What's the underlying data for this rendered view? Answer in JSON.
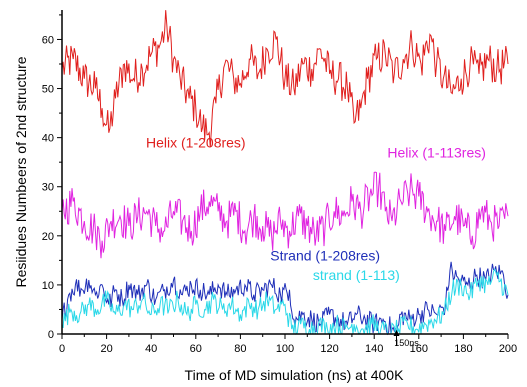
{
  "chart_data": {
    "type": "line",
    "xlabel": "Time of MD simulation (ns) at 400K",
    "ylabel": "Resiidues Numbeers of 2nd structure",
    "xlim": [
      0,
      200
    ],
    "ylim": [
      0,
      66
    ],
    "xticks": [
      0,
      20,
      40,
      60,
      80,
      100,
      120,
      140,
      160,
      180,
      200
    ],
    "yticks": [
      0,
      10,
      20,
      30,
      40,
      50,
      60
    ],
    "x_minor_step": 10,
    "y_minor_step": 5,
    "grid": false,
    "series": [
      {
        "name": "Helix (1-208res)",
        "color": "#e0201e",
        "points": [
          [
            0,
            54
          ],
          [
            5,
            56
          ],
          [
            10,
            52
          ],
          [
            15,
            50
          ],
          [
            18,
            46
          ],
          [
            21,
            41
          ],
          [
            24,
            48
          ],
          [
            28,
            55
          ],
          [
            32,
            52
          ],
          [
            36,
            54
          ],
          [
            40,
            57
          ],
          [
            44,
            59
          ],
          [
            47,
            63
          ],
          [
            50,
            56
          ],
          [
            53,
            52
          ],
          [
            57,
            48
          ],
          [
            60,
            46
          ],
          [
            63,
            42
          ],
          [
            66,
            41
          ],
          [
            69,
            47
          ],
          [
            73,
            55
          ],
          [
            77,
            52
          ],
          [
            80,
            51
          ],
          [
            84,
            56
          ],
          [
            88,
            53
          ],
          [
            92,
            58
          ],
          [
            96,
            60
          ],
          [
            100,
            52
          ],
          [
            104,
            50
          ],
          [
            108,
            55
          ],
          [
            112,
            54
          ],
          [
            116,
            58
          ],
          [
            120,
            53
          ],
          [
            124,
            52
          ],
          [
            128,
            50
          ],
          [
            131,
            43
          ],
          [
            134,
            46
          ],
          [
            137,
            52
          ],
          [
            141,
            56
          ],
          [
            145,
            57
          ],
          [
            149,
            53
          ],
          [
            153,
            56
          ],
          [
            157,
            59
          ],
          [
            161,
            55
          ],
          [
            165,
            61
          ],
          [
            168,
            55
          ],
          [
            171,
            52
          ],
          [
            175,
            49
          ],
          [
            179,
            52
          ],
          [
            183,
            55
          ],
          [
            187,
            53
          ],
          [
            191,
            56
          ],
          [
            195,
            54
          ],
          [
            200,
            55
          ]
        ]
      },
      {
        "name": "Helix (1-113res)",
        "color": "#e024e0",
        "points": [
          [
            0,
            25
          ],
          [
            5,
            27
          ],
          [
            10,
            23
          ],
          [
            15,
            21
          ],
          [
            18,
            19
          ],
          [
            22,
            23
          ],
          [
            26,
            24
          ],
          [
            30,
            22
          ],
          [
            34,
            24
          ],
          [
            38,
            25
          ],
          [
            42,
            22
          ],
          [
            46,
            21
          ],
          [
            50,
            25
          ],
          [
            54,
            23
          ],
          [
            58,
            21
          ],
          [
            62,
            25
          ],
          [
            66,
            27
          ],
          [
            70,
            25
          ],
          [
            74,
            23
          ],
          [
            78,
            25
          ],
          [
            82,
            21
          ],
          [
            86,
            24
          ],
          [
            90,
            22
          ],
          [
            94,
            20
          ],
          [
            98,
            23
          ],
          [
            102,
            21
          ],
          [
            106,
            24
          ],
          [
            110,
            22
          ],
          [
            114,
            20
          ],
          [
            118,
            22
          ],
          [
            122,
            25
          ],
          [
            126,
            24
          ],
          [
            130,
            27
          ],
          [
            134,
            25
          ],
          [
            138,
            28
          ],
          [
            142,
            30
          ],
          [
            145,
            25
          ],
          [
            148,
            23
          ],
          [
            152,
            27
          ],
          [
            156,
            29
          ],
          [
            160,
            28
          ],
          [
            164,
            25
          ],
          [
            168,
            23
          ],
          [
            172,
            21
          ],
          [
            176,
            24
          ],
          [
            180,
            22
          ],
          [
            184,
            20
          ],
          [
            188,
            25
          ],
          [
            192,
            23
          ],
          [
            196,
            22
          ],
          [
            200,
            24
          ]
        ]
      },
      {
        "name": "Strand (1-208res)",
        "color": "#1f2fb8",
        "points": [
          [
            0,
            3
          ],
          [
            3,
            8
          ],
          [
            6,
            10
          ],
          [
            9,
            9
          ],
          [
            12,
            11
          ],
          [
            15,
            8
          ],
          [
            18,
            10
          ],
          [
            21,
            6
          ],
          [
            24,
            9
          ],
          [
            27,
            7
          ],
          [
            30,
            10
          ],
          [
            34,
            8
          ],
          [
            38,
            10
          ],
          [
            42,
            7
          ],
          [
            46,
            9
          ],
          [
            50,
            11
          ],
          [
            54,
            8
          ],
          [
            58,
            10
          ],
          [
            62,
            9
          ],
          [
            66,
            8
          ],
          [
            70,
            10
          ],
          [
            74,
            8
          ],
          [
            78,
            9
          ],
          [
            82,
            10
          ],
          [
            86,
            8
          ],
          [
            90,
            9
          ],
          [
            94,
            10
          ],
          [
            98,
            8
          ],
          [
            102,
            9
          ],
          [
            104,
            3
          ],
          [
            108,
            4
          ],
          [
            112,
            3
          ],
          [
            116,
            2
          ],
          [
            120,
            4
          ],
          [
            124,
            3
          ],
          [
            128,
            2
          ],
          [
            132,
            4
          ],
          [
            136,
            3
          ],
          [
            140,
            2
          ],
          [
            144,
            3
          ],
          [
            148,
            1
          ],
          [
            150,
            0
          ],
          [
            152,
            4
          ],
          [
            156,
            3
          ],
          [
            160,
            4
          ],
          [
            164,
            5
          ],
          [
            168,
            4
          ],
          [
            172,
            6
          ],
          [
            174,
            13
          ],
          [
            178,
            11
          ],
          [
            182,
            10
          ],
          [
            186,
            12
          ],
          [
            190,
            11
          ],
          [
            194,
            13
          ],
          [
            198,
            12
          ],
          [
            200,
            8
          ]
        ]
      },
      {
        "name": "strand (1-113)",
        "color": "#2ad8e8",
        "points": [
          [
            0,
            2
          ],
          [
            4,
            5
          ],
          [
            8,
            4
          ],
          [
            12,
            6
          ],
          [
            16,
            5
          ],
          [
            20,
            7
          ],
          [
            24,
            4
          ],
          [
            28,
            6
          ],
          [
            32,
            5
          ],
          [
            36,
            7
          ],
          [
            40,
            4
          ],
          [
            44,
            6
          ],
          [
            48,
            5
          ],
          [
            52,
            7
          ],
          [
            56,
            4
          ],
          [
            60,
            6
          ],
          [
            64,
            5
          ],
          [
            68,
            7
          ],
          [
            72,
            5
          ],
          [
            76,
            6
          ],
          [
            80,
            4
          ],
          [
            84,
            6
          ],
          [
            88,
            5
          ],
          [
            92,
            7
          ],
          [
            96,
            5
          ],
          [
            100,
            6
          ],
          [
            103,
            1
          ],
          [
            107,
            2
          ],
          [
            111,
            1
          ],
          [
            115,
            2
          ],
          [
            119,
            1
          ],
          [
            123,
            2
          ],
          [
            127,
            1
          ],
          [
            131,
            2
          ],
          [
            135,
            1
          ],
          [
            139,
            2
          ],
          [
            143,
            1
          ],
          [
            147,
            0
          ],
          [
            151,
            1
          ],
          [
            155,
            2
          ],
          [
            159,
            1
          ],
          [
            163,
            2
          ],
          [
            167,
            3
          ],
          [
            171,
            4
          ],
          [
            175,
            9
          ],
          [
            179,
            10
          ],
          [
            183,
            8
          ],
          [
            187,
            11
          ],
          [
            191,
            10
          ],
          [
            195,
            12
          ],
          [
            200,
            8
          ]
        ]
      }
    ],
    "series_label_positions": [
      {
        "series": 0,
        "x": 60,
        "y": 38
      },
      {
        "series": 1,
        "x": 168,
        "y": 36
      },
      {
        "series": 2,
        "x": 118,
        "y": 15
      },
      {
        "series": 3,
        "x": 132,
        "y": 11
      }
    ],
    "annotations": [
      {
        "text": "150ns",
        "x": 150,
        "y": 0
      }
    ]
  }
}
